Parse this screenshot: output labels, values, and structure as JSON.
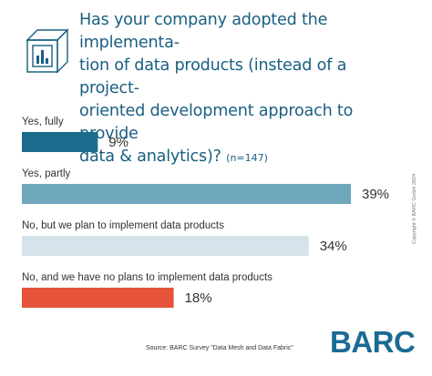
{
  "title": {
    "text": "Has your company adopted the implementa-\ntion of data products (instead of a project-\noriented development approach to provide\ndata & analytics)? ",
    "sample_size": "(n=147)"
  },
  "icons": {
    "header_icon": "data-product-cube-icon"
  },
  "chart_data": {
    "type": "bar",
    "orientation": "horizontal",
    "categories": [
      "Yes, fully",
      "Yes, partly",
      "No, but we plan to implement data products",
      "No, and we have no plans to implement data products"
    ],
    "values": [
      9,
      39,
      34,
      18
    ],
    "value_labels": [
      "9%",
      "39%",
      "34%",
      "18%"
    ],
    "unit": "%",
    "colors": [
      "#1b6b8c",
      "#6fa7bd",
      "#d4e4ea",
      "#e5533a"
    ],
    "xlim": [
      0,
      39
    ],
    "grid": false
  },
  "footer": {
    "source": "Source: BARC Survey \"Data Mesh and Data Fabric\"",
    "copyright": "Copyright © BARC GmbH 2024",
    "brand": "BARC"
  }
}
